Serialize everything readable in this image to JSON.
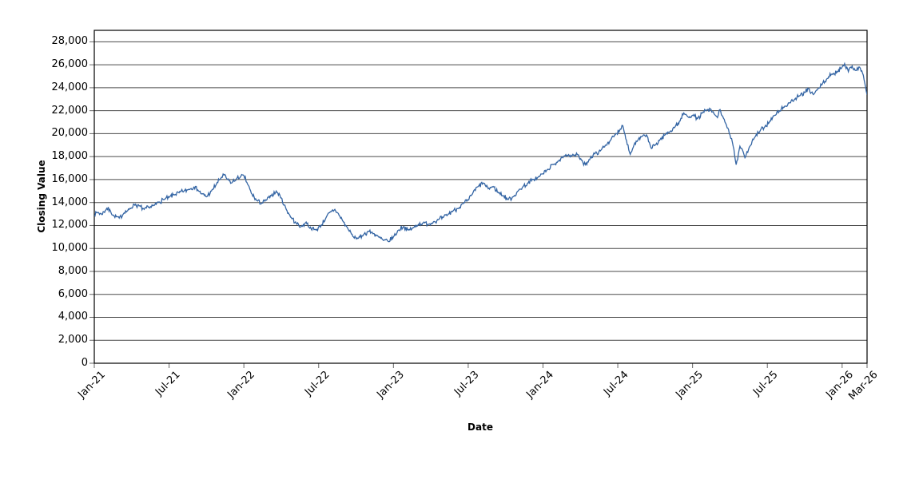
{
  "chart_data": {
    "type": "line",
    "title": "",
    "xlabel": "Date",
    "ylabel": "Closing Value",
    "legend": "none",
    "grid": "horizontal",
    "x_unit": "months_since_jan_2021",
    "xlim": [
      0,
      62
    ],
    "ylim": [
      0,
      29000
    ],
    "y_ticks": [
      0,
      2000,
      4000,
      6000,
      8000,
      10000,
      12000,
      14000,
      16000,
      18000,
      20000,
      22000,
      24000,
      26000,
      28000
    ],
    "x_ticks": [
      {
        "pos": 0,
        "label": "Jan-21"
      },
      {
        "pos": 6,
        "label": "Jul-21"
      },
      {
        "pos": 12,
        "label": "Jan-22"
      },
      {
        "pos": 18,
        "label": "Jul-22"
      },
      {
        "pos": 24,
        "label": "Jan-23"
      },
      {
        "pos": 30,
        "label": "Jul-23"
      },
      {
        "pos": 36,
        "label": "Jan-24"
      },
      {
        "pos": 42,
        "label": "Jul-24"
      },
      {
        "pos": 48,
        "label": "Jan-25"
      },
      {
        "pos": 54,
        "label": "Jul-25"
      },
      {
        "pos": 60,
        "label": "Jan-26"
      },
      {
        "pos": 62,
        "label": "Mar-26"
      }
    ],
    "line_color": "#3465a4",
    "grid_color": "#4a4a4a",
    "axis_color": "#000000",
    "tick_color": "#666666",
    "noise_amplitude": 220,
    "series": [
      {
        "name": "Closing Value",
        "points": [
          [
            0,
            12900
          ],
          [
            0.3,
            13150
          ],
          [
            0.6,
            12950
          ],
          [
            1,
            13500
          ],
          [
            1.3,
            13250
          ],
          [
            1.6,
            12800
          ],
          [
            2,
            12650
          ],
          [
            2.4,
            13100
          ],
          [
            2.8,
            13400
          ],
          [
            3.2,
            13850
          ],
          [
            3.6,
            13700
          ],
          [
            4,
            13400
          ],
          [
            4.4,
            13600
          ],
          [
            4.8,
            13750
          ],
          [
            5.2,
            14050
          ],
          [
            5.6,
            14250
          ],
          [
            6,
            14450
          ],
          [
            6.4,
            14700
          ],
          [
            6.8,
            14850
          ],
          [
            7.2,
            15000
          ],
          [
            7.6,
            15150
          ],
          [
            8,
            15350
          ],
          [
            8.3,
            15100
          ],
          [
            8.6,
            14750
          ],
          [
            9,
            14500
          ],
          [
            9.4,
            15000
          ],
          [
            9.8,
            15600
          ],
          [
            10.2,
            16200
          ],
          [
            10.4,
            16400
          ],
          [
            10.7,
            16000
          ],
          [
            11,
            15700
          ],
          [
            11.4,
            16050
          ],
          [
            11.7,
            16200
          ],
          [
            12,
            16350
          ],
          [
            12.3,
            15600
          ],
          [
            12.6,
            14800
          ],
          [
            13,
            14200
          ],
          [
            13.4,
            13900
          ],
          [
            13.8,
            14200
          ],
          [
            14.2,
            14600
          ],
          [
            14.6,
            15000
          ],
          [
            15,
            14400
          ],
          [
            15.4,
            13400
          ],
          [
            15.8,
            12700
          ],
          [
            16.2,
            12200
          ],
          [
            16.6,
            11900
          ],
          [
            17,
            12300
          ],
          [
            17.4,
            11700
          ],
          [
            17.8,
            11600
          ],
          [
            18.2,
            12000
          ],
          [
            18.6,
            12700
          ],
          [
            19,
            13200
          ],
          [
            19.3,
            13400
          ],
          [
            19.7,
            12800
          ],
          [
            20,
            12300
          ],
          [
            20.4,
            11600
          ],
          [
            20.8,
            11000
          ],
          [
            21.2,
            10900
          ],
          [
            21.6,
            11200
          ],
          [
            22,
            11500
          ],
          [
            22.4,
            11300
          ],
          [
            22.8,
            11000
          ],
          [
            23.2,
            10700
          ],
          [
            23.6,
            10600
          ],
          [
            24,
            11000
          ],
          [
            24.4,
            11600
          ],
          [
            24.8,
            11900
          ],
          [
            25.2,
            11600
          ],
          [
            25.6,
            11800
          ],
          [
            26,
            12100
          ],
          [
            26.4,
            12250
          ],
          [
            26.8,
            12100
          ],
          [
            27.2,
            12300
          ],
          [
            27.6,
            12500
          ],
          [
            28,
            12700
          ],
          [
            28.4,
            13000
          ],
          [
            28.8,
            13300
          ],
          [
            29.2,
            13500
          ],
          [
            29.6,
            13900
          ],
          [
            30,
            14200
          ],
          [
            30.4,
            14900
          ],
          [
            30.8,
            15400
          ],
          [
            31.2,
            15700
          ],
          [
            31.6,
            15200
          ],
          [
            32,
            15400
          ],
          [
            32.4,
            14900
          ],
          [
            32.8,
            14600
          ],
          [
            33.2,
            14250
          ],
          [
            33.6,
            14500
          ],
          [
            34,
            15000
          ],
          [
            34.4,
            15400
          ],
          [
            34.8,
            15700
          ],
          [
            35.2,
            16000
          ],
          [
            35.6,
            16200
          ],
          [
            36,
            16500
          ],
          [
            36.4,
            16900
          ],
          [
            36.8,
            17300
          ],
          [
            37.2,
            17600
          ],
          [
            37.6,
            17900
          ],
          [
            38,
            18100
          ],
          [
            38.4,
            18200
          ],
          [
            38.8,
            18150
          ],
          [
            39.2,
            17500
          ],
          [
            39.4,
            17300
          ],
          [
            39.8,
            17900
          ],
          [
            40.2,
            18300
          ],
          [
            40.6,
            18500
          ],
          [
            41,
            19000
          ],
          [
            41.4,
            19400
          ],
          [
            41.8,
            19900
          ],
          [
            42.2,
            20400
          ],
          [
            42.4,
            20700
          ],
          [
            42.7,
            19400
          ],
          [
            43,
            18200
          ],
          [
            43.3,
            19000
          ],
          [
            43.6,
            19400
          ],
          [
            44,
            19800
          ],
          [
            44.3,
            19900
          ],
          [
            44.7,
            18700
          ],
          [
            45,
            19000
          ],
          [
            45.4,
            19500
          ],
          [
            45.8,
            19900
          ],
          [
            46.2,
            20200
          ],
          [
            46.6,
            20600
          ],
          [
            47,
            21100
          ],
          [
            47.3,
            21800
          ],
          [
            47.6,
            21500
          ],
          [
            48,
            21600
          ],
          [
            48.4,
            21300
          ],
          [
            48.8,
            21800
          ],
          [
            49.2,
            22100
          ],
          [
            49.6,
            21900
          ],
          [
            50,
            21400
          ],
          [
            50.2,
            22100
          ],
          [
            50.6,
            21000
          ],
          [
            51,
            19900
          ],
          [
            51.2,
            19200
          ],
          [
            51.5,
            17300
          ],
          [
            51.8,
            18900
          ],
          [
            52,
            18600
          ],
          [
            52.2,
            17900
          ],
          [
            52.6,
            18900
          ],
          [
            53,
            19700
          ],
          [
            53.4,
            20200
          ],
          [
            53.8,
            20600
          ],
          [
            54.2,
            21100
          ],
          [
            54.6,
            21600
          ],
          [
            55,
            22000
          ],
          [
            55.4,
            22400
          ],
          [
            55.8,
            22700
          ],
          [
            56.2,
            23000
          ],
          [
            56.6,
            23300
          ],
          [
            57,
            23600
          ],
          [
            57.3,
            23900
          ],
          [
            57.7,
            23400
          ],
          [
            58,
            23800
          ],
          [
            58.4,
            24300
          ],
          [
            58.8,
            24800
          ],
          [
            59.2,
            25200
          ],
          [
            59.6,
            25400
          ],
          [
            60,
            25800
          ],
          [
            60.2,
            26100
          ],
          [
            60.5,
            25400
          ],
          [
            60.8,
            25900
          ],
          [
            61.1,
            25500
          ],
          [
            61.4,
            25800
          ],
          [
            61.7,
            25100
          ],
          [
            62,
            23400
          ]
        ]
      }
    ]
  }
}
